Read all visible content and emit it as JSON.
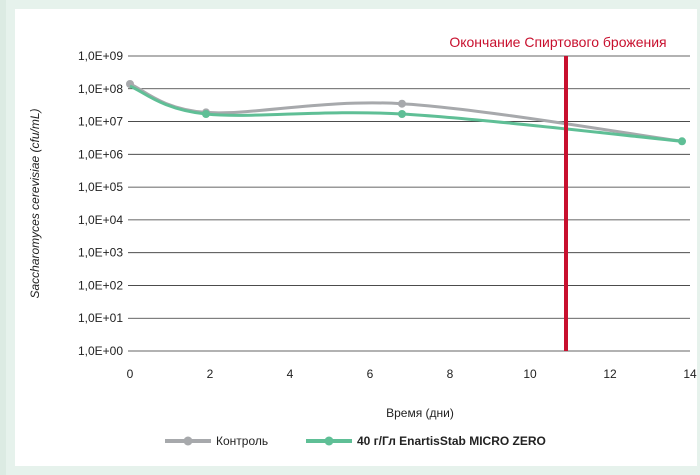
{
  "chart_data": {
    "type": "line",
    "xlabel": "Время (дни)",
    "ylabel": "Saccharomyces cerevisiae (cfu/mL)",
    "xlim": [
      0,
      14
    ],
    "ylim_log10": [
      0,
      9
    ],
    "y_scale": "log",
    "x_ticks": [
      "0",
      "2",
      "4",
      "6",
      "8",
      "10",
      "12",
      "14"
    ],
    "y_ticks": [
      "1,0E+00",
      "1,0E+01",
      "1,0E+02",
      "1,0E+03",
      "1,0E+04",
      "1,0E+05",
      "1,0E+06",
      "1,0E+07",
      "1,0E+08",
      "1,0E+09"
    ],
    "grid": "horizontal",
    "legend_position": "bottom",
    "series": [
      {
        "name": "Контроль",
        "color": "#a7a9ac",
        "points_x": [
          0,
          1.9,
          6.8,
          13.8
        ],
        "points_y": [
          140000000,
          19000000,
          35000000,
          2500000
        ],
        "markers": [
          true,
          true,
          true,
          false
        ]
      },
      {
        "name": "40 г/Гл EnartisStab MICRO ZERO",
        "color": "#5fbf96",
        "points_x": [
          0,
          1.9,
          6.8,
          13.8
        ],
        "points_y": [
          120000000,
          17000000,
          17000000,
          2500000
        ],
        "markers": [
          false,
          true,
          true,
          true
        ]
      }
    ],
    "annotation": {
      "text": "Окончание Спиртового брожения",
      "x": 10.9,
      "color": "#c8102e"
    }
  }
}
